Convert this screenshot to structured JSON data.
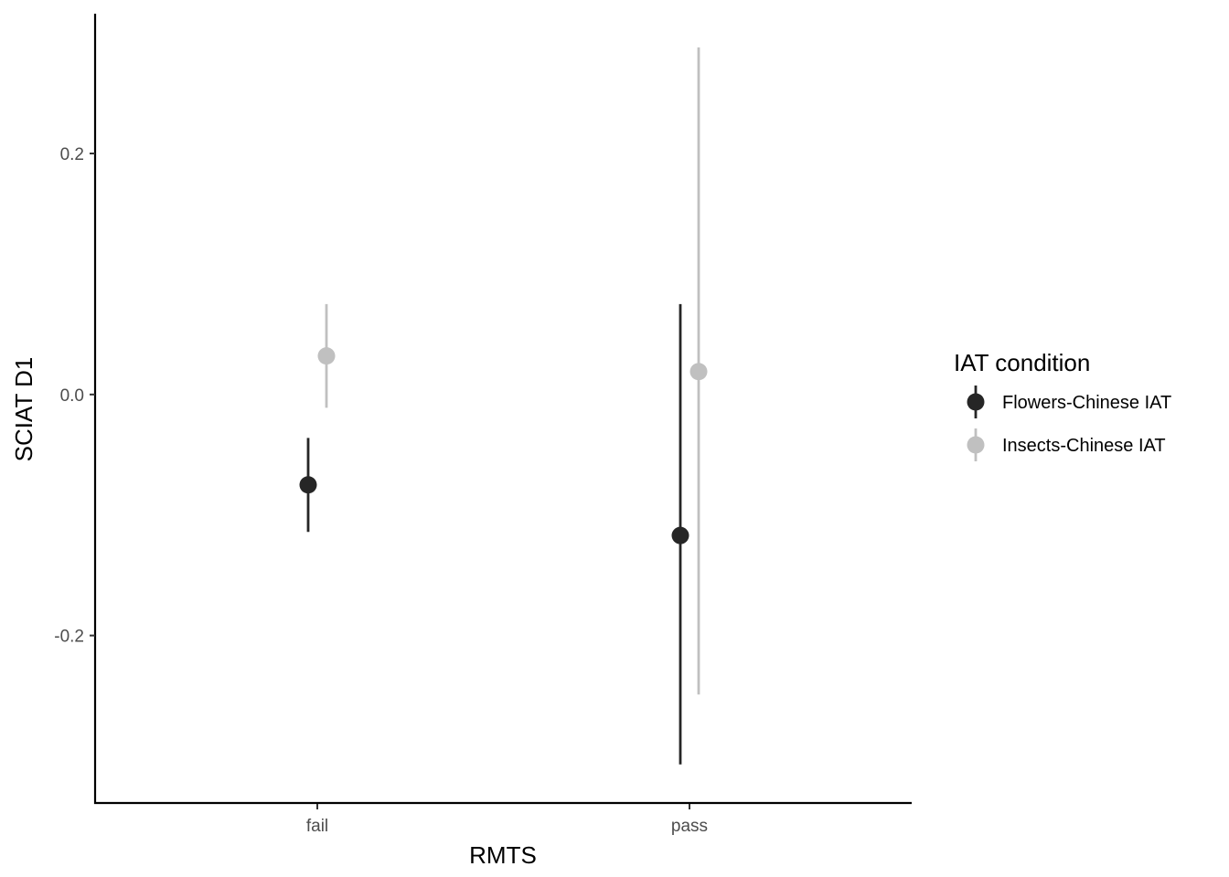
{
  "chart_data": {
    "type": "scatter",
    "title": "",
    "xlabel": "RMTS",
    "ylabel": "SCIAT D1",
    "categories": [
      "fail",
      "pass"
    ],
    "y_ticks": [
      "-0.2",
      "0.0",
      "0.2"
    ],
    "y_tick_values": [
      -0.2,
      0.0,
      0.2
    ],
    "ylim": [
      -0.339,
      0.316
    ],
    "grid": false,
    "legend_position": "right",
    "legend_title": "IAT condition",
    "series": [
      {
        "name": "Flowers-Chinese IAT",
        "color": "#262626",
        "points": [
          {
            "x": "fail",
            "y": -0.075,
            "ymin": -0.114,
            "ymax": -0.036
          },
          {
            "x": "pass",
            "y": -0.117,
            "ymin": -0.307,
            "ymax": 0.075
          }
        ]
      },
      {
        "name": "Insects-Chinese IAT",
        "color": "#c0c0c0",
        "points": [
          {
            "x": "fail",
            "y": 0.032,
            "ymin": -0.011,
            "ymax": 0.075
          },
          {
            "x": "pass",
            "y": 0.019,
            "ymin": -0.249,
            "ymax": 0.288
          }
        ]
      }
    ]
  }
}
